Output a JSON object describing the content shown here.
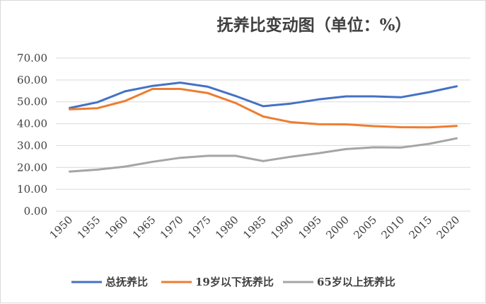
{
  "chart_data": {
    "type": "line",
    "title": "抚养比变动图（单位：%）",
    "xlabel": "",
    "ylabel": "",
    "ylim": [
      0,
      70
    ],
    "yticks": [
      "70.00",
      "60.00",
      "50.00",
      "40.00",
      "30.00",
      "20.00",
      "10.00",
      "0.00"
    ],
    "categories": [
      "1950",
      "1955",
      "1960",
      "1965",
      "1970",
      "1975",
      "1980",
      "1985",
      "1990",
      "1995",
      "2000",
      "2005",
      "2010",
      "2015",
      "2020"
    ],
    "grid": true,
    "legend_position": "bottom",
    "series": [
      {
        "name": "总抚养比",
        "color": "#4472c4",
        "values": [
          47.2,
          49.8,
          54.8,
          57.3,
          58.8,
          56.9,
          52.7,
          48.0,
          49.2,
          51.1,
          52.5,
          52.5,
          52.1,
          54.4,
          57.1
        ]
      },
      {
        "name": "19岁以下抚养比",
        "color": "#ed7d31",
        "values": [
          46.6,
          47.1,
          50.4,
          55.9,
          55.9,
          54.0,
          49.5,
          43.3,
          40.7,
          39.8,
          39.7,
          38.9,
          38.4,
          38.3,
          39.0
        ]
      },
      {
        "name": "65岁以上抚养比",
        "color": "#a5a5a5",
        "values": [
          18.1,
          19.0,
          20.4,
          22.6,
          24.4,
          25.3,
          25.3,
          22.9,
          24.9,
          26.5,
          28.4,
          29.2,
          29.1,
          30.8,
          33.3
        ]
      }
    ]
  }
}
